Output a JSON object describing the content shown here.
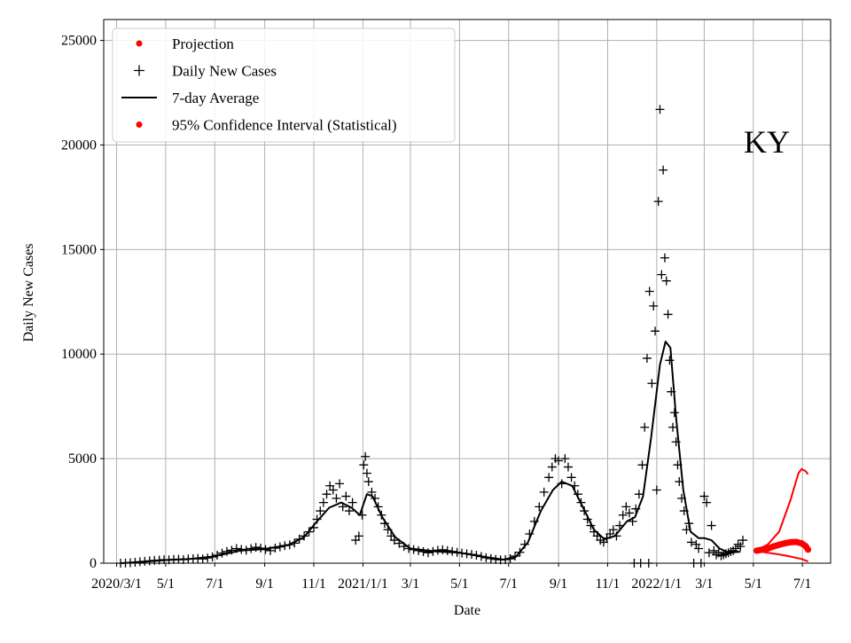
{
  "chart_data": {
    "type": "scatter",
    "title": "",
    "xlabel": "Date",
    "ylabel": "Daily New Cases",
    "annotation": "KY",
    "ylim": [
      0,
      26000
    ],
    "x_range": [
      "2020-02-14",
      "2022-08-05"
    ],
    "y_ticks": [
      "0",
      "5000",
      "10000",
      "15000",
      "20000",
      "25000"
    ],
    "x_ticks": [
      {
        "date": "2020-03-01",
        "label": "2020/3/1"
      },
      {
        "date": "2020-05-01",
        "label": "5/1"
      },
      {
        "date": "2020-07-01",
        "label": "7/1"
      },
      {
        "date": "2020-09-01",
        "label": "9/1"
      },
      {
        "date": "2020-11-01",
        "label": "11/1"
      },
      {
        "date": "2021-01-01",
        "label": "2021/1/1"
      },
      {
        "date": "2021-03-01",
        "label": "3/1"
      },
      {
        "date": "2021-05-01",
        "label": "5/1"
      },
      {
        "date": "2021-07-01",
        "label": "7/1"
      },
      {
        "date": "2021-09-01",
        "label": "9/1"
      },
      {
        "date": "2021-11-01",
        "label": "11/1"
      },
      {
        "date": "2022-01-01",
        "label": "2022/1/1"
      },
      {
        "date": "2022-03-01",
        "label": "3/1"
      },
      {
        "date": "2022-05-01",
        "label": "5/1"
      },
      {
        "date": "2022-07-01",
        "label": "7/1"
      }
    ],
    "grid": true,
    "legend_position": "top-left",
    "legend": [
      {
        "label": "Projection",
        "marker": "dot",
        "color": "#ff0000"
      },
      {
        "label": "Daily New Cases",
        "marker": "plus",
        "color": "#000000"
      },
      {
        "label": "7-day Average",
        "marker": "line",
        "color": "#000000"
      },
      {
        "label": "95% Confidence Interval (Statistical)",
        "marker": "dot",
        "color": "#ff0000"
      }
    ],
    "series": [
      {
        "name": "Daily New Cases",
        "style": "plus",
        "color": "#000000",
        "points": [
          [
            "2020-03-06",
            0
          ],
          [
            "2020-03-12",
            5
          ],
          [
            "2020-03-18",
            20
          ],
          [
            "2020-03-24",
            40
          ],
          [
            "2020-03-30",
            70
          ],
          [
            "2020-04-05",
            90
          ],
          [
            "2020-04-11",
            110
          ],
          [
            "2020-04-17",
            130
          ],
          [
            "2020-04-23",
            150
          ],
          [
            "2020-04-29",
            170
          ],
          [
            "2020-05-05",
            160
          ],
          [
            "2020-05-11",
            180
          ],
          [
            "2020-05-17",
            190
          ],
          [
            "2020-05-23",
            170
          ],
          [
            "2020-05-29",
            200
          ],
          [
            "2020-06-04",
            210
          ],
          [
            "2020-06-10",
            230
          ],
          [
            "2020-06-16",
            200
          ],
          [
            "2020-06-22",
            250
          ],
          [
            "2020-06-28",
            300
          ],
          [
            "2020-07-04",
            380
          ],
          [
            "2020-07-10",
            480
          ],
          [
            "2020-07-16",
            560
          ],
          [
            "2020-07-22",
            620
          ],
          [
            "2020-07-28",
            700
          ],
          [
            "2020-08-03",
            660
          ],
          [
            "2020-08-09",
            620
          ],
          [
            "2020-08-15",
            700
          ],
          [
            "2020-08-21",
            760
          ],
          [
            "2020-08-27",
            720
          ],
          [
            "2020-09-02",
            650
          ],
          [
            "2020-09-08",
            600
          ],
          [
            "2020-09-14",
            720
          ],
          [
            "2020-09-20",
            780
          ],
          [
            "2020-09-26",
            840
          ],
          [
            "2020-10-02",
            880
          ],
          [
            "2020-10-08",
            960
          ],
          [
            "2020-10-14",
            1150
          ],
          [
            "2020-10-20",
            1300
          ],
          [
            "2020-10-26",
            1500
          ],
          [
            "2020-11-01",
            1700
          ],
          [
            "2020-11-05",
            2100
          ],
          [
            "2020-11-09",
            2500
          ],
          [
            "2020-11-13",
            2900
          ],
          [
            "2020-11-17",
            3300
          ],
          [
            "2020-11-21",
            3700
          ],
          [
            "2020-11-25",
            3500
          ],
          [
            "2020-11-29",
            3100
          ],
          [
            "2020-12-03",
            3800
          ],
          [
            "2020-12-07",
            2700
          ],
          [
            "2020-12-11",
            3200
          ],
          [
            "2020-12-15",
            2500
          ],
          [
            "2020-12-19",
            2900
          ],
          [
            "2020-12-23",
            1100
          ],
          [
            "2020-12-27",
            1300
          ],
          [
            "2020-12-31",
            2300
          ],
          [
            "2021-01-02",
            4700
          ],
          [
            "2021-01-04",
            5100
          ],
          [
            "2021-01-06",
            4300
          ],
          [
            "2021-01-08",
            3900
          ],
          [
            "2021-01-12",
            3400
          ],
          [
            "2021-01-16",
            3100
          ],
          [
            "2021-01-20",
            2700
          ],
          [
            "2021-01-24",
            2300
          ],
          [
            "2021-01-28",
            1900
          ],
          [
            "2021-02-01",
            1600
          ],
          [
            "2021-02-05",
            1300
          ],
          [
            "2021-02-09",
            1100
          ],
          [
            "2021-02-15",
            950
          ],
          [
            "2021-02-21",
            800
          ],
          [
            "2021-02-27",
            700
          ],
          [
            "2021-03-05",
            650
          ],
          [
            "2021-03-11",
            600
          ],
          [
            "2021-03-17",
            550
          ],
          [
            "2021-03-23",
            500
          ],
          [
            "2021-03-29",
            560
          ],
          [
            "2021-04-04",
            620
          ],
          [
            "2021-04-10",
            640
          ],
          [
            "2021-04-16",
            600
          ],
          [
            "2021-04-22",
            560
          ],
          [
            "2021-04-28",
            520
          ],
          [
            "2021-05-04",
            480
          ],
          [
            "2021-05-10",
            450
          ],
          [
            "2021-05-16",
            420
          ],
          [
            "2021-05-22",
            380
          ],
          [
            "2021-05-28",
            320
          ],
          [
            "2021-06-03",
            260
          ],
          [
            "2021-06-09",
            220
          ],
          [
            "2021-06-15",
            180
          ],
          [
            "2021-06-21",
            160
          ],
          [
            "2021-06-27",
            170
          ],
          [
            "2021-07-03",
            210
          ],
          [
            "2021-07-09",
            340
          ],
          [
            "2021-07-15",
            520
          ],
          [
            "2021-07-21",
            900
          ],
          [
            "2021-07-27",
            1400
          ],
          [
            "2021-08-02",
            2000
          ],
          [
            "2021-08-08",
            2700
          ],
          [
            "2021-08-14",
            3400
          ],
          [
            "2021-08-20",
            4100
          ],
          [
            "2021-08-24",
            4600
          ],
          [
            "2021-08-28",
            5000
          ],
          [
            "2021-09-01",
            4900
          ],
          [
            "2021-09-05",
            3800
          ],
          [
            "2021-09-09",
            5000
          ],
          [
            "2021-09-13",
            4600
          ],
          [
            "2021-09-17",
            4100
          ],
          [
            "2021-09-21",
            3700
          ],
          [
            "2021-09-25",
            3300
          ],
          [
            "2021-09-29",
            2900
          ],
          [
            "2021-10-03",
            2500
          ],
          [
            "2021-10-07",
            2100
          ],
          [
            "2021-10-11",
            1800
          ],
          [
            "2021-10-15",
            1500
          ],
          [
            "2021-10-19",
            1300
          ],
          [
            "2021-10-23",
            1100
          ],
          [
            "2021-10-27",
            1000
          ],
          [
            "2021-10-31",
            1200
          ],
          [
            "2021-11-04",
            1400
          ],
          [
            "2021-11-08",
            1600
          ],
          [
            "2021-11-12",
            1300
          ],
          [
            "2021-11-16",
            1800
          ],
          [
            "2021-11-20",
            2300
          ],
          [
            "2021-11-24",
            2700
          ],
          [
            "2021-11-28",
            2400
          ],
          [
            "2021-12-02",
            2000
          ],
          [
            "2021-12-04",
            0
          ],
          [
            "2021-12-06",
            2600
          ],
          [
            "2021-12-10",
            3300
          ],
          [
            "2021-12-12",
            0
          ],
          [
            "2021-12-14",
            4700
          ],
          [
            "2021-12-17",
            6500
          ],
          [
            "2021-12-20",
            9800
          ],
          [
            "2021-12-22",
            0
          ],
          [
            "2021-12-23",
            13000
          ],
          [
            "2021-12-26",
            8600
          ],
          [
            "2021-12-28",
            12300
          ],
          [
            "2021-12-30",
            11100
          ],
          [
            "2022-01-01",
            3500
          ],
          [
            "2022-01-03",
            17300
          ],
          [
            "2022-01-05",
            21700
          ],
          [
            "2022-01-07",
            13800
          ],
          [
            "2022-01-09",
            18800
          ],
          [
            "2022-01-11",
            14600
          ],
          [
            "2022-01-13",
            13500
          ],
          [
            "2022-01-15",
            11900
          ],
          [
            "2022-01-17",
            9700
          ],
          [
            "2022-01-19",
            8200
          ],
          [
            "2022-01-21",
            6500
          ],
          [
            "2022-01-23",
            7200
          ],
          [
            "2022-01-25",
            5800
          ],
          [
            "2022-01-27",
            4700
          ],
          [
            "2022-01-29",
            3900
          ],
          [
            "2022-02-01",
            3100
          ],
          [
            "2022-02-04",
            2500
          ],
          [
            "2022-02-07",
            1600
          ],
          [
            "2022-02-10",
            1900
          ],
          [
            "2022-02-13",
            1000
          ],
          [
            "2022-02-16",
            0
          ],
          [
            "2022-02-19",
            900
          ],
          [
            "2022-02-22",
            700
          ],
          [
            "2022-02-25",
            0
          ],
          [
            "2022-03-01",
            3200
          ],
          [
            "2022-03-04",
            2900
          ],
          [
            "2022-03-07",
            500
          ],
          [
            "2022-03-10",
            1800
          ],
          [
            "2022-03-13",
            600
          ],
          [
            "2022-03-16",
            400
          ],
          [
            "2022-03-19",
            500
          ],
          [
            "2022-03-22",
            350
          ],
          [
            "2022-03-25",
            400
          ],
          [
            "2022-03-28",
            450
          ],
          [
            "2022-03-31",
            500
          ],
          [
            "2022-04-03",
            550
          ],
          [
            "2022-04-06",
            600
          ],
          [
            "2022-04-09",
            700
          ],
          [
            "2022-04-12",
            900
          ],
          [
            "2022-04-15",
            800
          ],
          [
            "2022-04-18",
            1100
          ]
        ]
      },
      {
        "name": "7-day Average",
        "style": "line",
        "color": "#000000",
        "points": [
          [
            "2020-03-06",
            0
          ],
          [
            "2020-04-01",
            60
          ],
          [
            "2020-05-01",
            150
          ],
          [
            "2020-06-01",
            200
          ],
          [
            "2020-07-01",
            330
          ],
          [
            "2020-08-01",
            600
          ],
          [
            "2020-09-01",
            680
          ],
          [
            "2020-10-01",
            880
          ],
          [
            "2020-10-20",
            1250
          ],
          [
            "2020-11-05",
            2000
          ],
          [
            "2020-11-20",
            2650
          ],
          [
            "2020-12-05",
            2900
          ],
          [
            "2020-12-18",
            2650
          ],
          [
            "2020-12-28",
            2300
          ],
          [
            "2021-01-06",
            3300
          ],
          [
            "2021-01-13",
            3200
          ],
          [
            "2021-01-25",
            2200
          ],
          [
            "2021-02-10",
            1250
          ],
          [
            "2021-03-01",
            700
          ],
          [
            "2021-04-01",
            560
          ],
          [
            "2021-05-01",
            500
          ],
          [
            "2021-06-01",
            300
          ],
          [
            "2021-06-25",
            170
          ],
          [
            "2021-07-10",
            300
          ],
          [
            "2021-07-25",
            1000
          ],
          [
            "2021-08-10",
            2500
          ],
          [
            "2021-08-25",
            3500
          ],
          [
            "2021-09-05",
            3900
          ],
          [
            "2021-09-18",
            3700
          ],
          [
            "2021-10-01",
            2700
          ],
          [
            "2021-10-15",
            1600
          ],
          [
            "2021-10-28",
            1150
          ],
          [
            "2021-11-10",
            1300
          ],
          [
            "2021-11-25",
            2000
          ],
          [
            "2021-12-05",
            2200
          ],
          [
            "2021-12-15",
            3200
          ],
          [
            "2021-12-25",
            6000
          ],
          [
            "2022-01-05",
            9500
          ],
          [
            "2022-01-12",
            10600
          ],
          [
            "2022-01-18",
            10300
          ],
          [
            "2022-01-25",
            7000
          ],
          [
            "2022-02-03",
            3500
          ],
          [
            "2022-02-12",
            1500
          ],
          [
            "2022-02-22",
            1200
          ],
          [
            "2022-03-01",
            1200
          ],
          [
            "2022-03-10",
            1100
          ],
          [
            "2022-03-20",
            700
          ],
          [
            "2022-04-01",
            500
          ],
          [
            "2022-04-15",
            550
          ]
        ]
      },
      {
        "name": "Projection",
        "style": "dots",
        "color": "#ff0000",
        "points": [
          [
            "2022-05-05",
            600
          ],
          [
            "2022-05-12",
            650
          ],
          [
            "2022-05-19",
            700
          ],
          [
            "2022-05-26",
            800
          ],
          [
            "2022-06-02",
            880
          ],
          [
            "2022-06-09",
            950
          ],
          [
            "2022-06-16",
            1000
          ],
          [
            "2022-06-23",
            1020
          ],
          [
            "2022-06-30",
            950
          ],
          [
            "2022-07-05",
            820
          ],
          [
            "2022-07-08",
            650
          ]
        ]
      },
      {
        "name": "95% Confidence Interval (Statistical)",
        "style": "band",
        "color": "#ff0000",
        "upper": [
          [
            "2022-05-05",
            600
          ],
          [
            "2022-05-19",
            900
          ],
          [
            "2022-06-02",
            1500
          ],
          [
            "2022-06-16",
            3000
          ],
          [
            "2022-06-26",
            4300
          ],
          [
            "2022-06-30",
            4500
          ],
          [
            "2022-07-05",
            4400
          ],
          [
            "2022-07-08",
            4250
          ]
        ],
        "lower": [
          [
            "2022-05-05",
            580
          ],
          [
            "2022-05-19",
            500
          ],
          [
            "2022-06-02",
            420
          ],
          [
            "2022-06-16",
            320
          ],
          [
            "2022-06-30",
            200
          ],
          [
            "2022-07-08",
            80
          ]
        ]
      }
    ]
  }
}
